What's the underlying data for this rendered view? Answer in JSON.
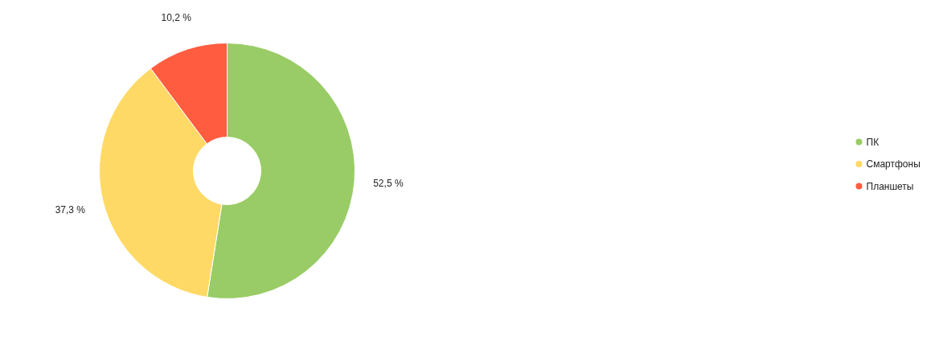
{
  "chart_data": {
    "type": "donut",
    "categories": [
      "ПК",
      "Смартфоны",
      "Планшеты"
    ],
    "values": [
      52.5,
      37.3,
      10.2
    ],
    "colors": [
      "#99cc66",
      "#ffd966",
      "#ff5c40"
    ],
    "value_labels": [
      "52,5 %",
      "37,3 %",
      "10,2 %"
    ],
    "legend": "right"
  }
}
